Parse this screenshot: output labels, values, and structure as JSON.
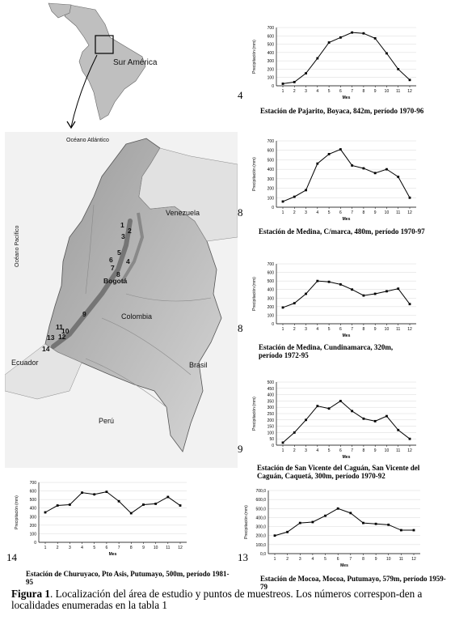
{
  "figure": {
    "caption_bold": "Figura 1",
    "caption_text": ". Localización del área de estudio y puntos de muestreos. Los números correspon-den a localidades enumeradas en la tabla 1"
  },
  "map": {
    "inset_label": "Sur América",
    "ocean_atlantic": "Océano Atlántico",
    "ocean_pacific": "Océano Pacífico",
    "countries": [
      "Venezuela",
      "Colombia",
      "Ecuador",
      "Brasil",
      "Perú"
    ],
    "city": "Bogotá",
    "points": [
      "1",
      "2",
      "3",
      "4",
      "5",
      "6",
      "7",
      "8",
      "9",
      "10",
      "11",
      "12",
      "13",
      "14"
    ]
  },
  "charts": [
    {
      "id": "pajarito",
      "ref": "4",
      "label": "Estación de Pajarito, Boyaca, 842m, período 1970-96",
      "xlabel": "Mes",
      "ylabel": "Precipitación (mm)",
      "ylim": [
        0,
        700
      ],
      "yticks": [
        "0",
        "100",
        "200",
        "300",
        "400",
        "500",
        "600",
        "700"
      ]
    },
    {
      "id": "medina1",
      "ref": "8",
      "label": "Estación de Medina, C/marca, 480m, período 1970-97",
      "xlabel": "Mes",
      "ylabel": "Precipitación (mm)",
      "ylim": [
        0,
        700
      ],
      "yticks": [
        "0",
        "100",
        "200",
        "300",
        "400",
        "500",
        "600",
        "700"
      ]
    },
    {
      "id": "medina2",
      "ref": "8",
      "label": "Estación de Medina, Cundinamarca, 320m, período 1972-95",
      "xlabel": "Mes",
      "ylabel": "Precipitación (mm)",
      "ylim": [
        0,
        700
      ],
      "yticks": [
        "0",
        "100",
        "200",
        "300",
        "400",
        "500",
        "600",
        "700"
      ]
    },
    {
      "id": "sanvicente",
      "ref": "9",
      "label": "Estación de San Vicente del Caguán, San Vicente del Caguán, Caquetá, 300m, período 1970-92",
      "xlabel": "Mes",
      "ylabel": "Precipitación (mm)",
      "ylim": [
        0,
        500
      ],
      "yticks": [
        "0",
        "50",
        "100",
        "150",
        "200",
        "250",
        "300",
        "350",
        "400",
        "450",
        "500"
      ]
    },
    {
      "id": "churuyaco",
      "ref": "14",
      "label": "Estación de Churuyaco, Pto Asis, Putumayo, 500m, período 1981-95",
      "xlabel": "Mes",
      "ylabel": "Precipitación (mm)",
      "ylim": [
        0,
        700
      ],
      "yticks": [
        "0",
        "100",
        "200",
        "300",
        "400",
        "500",
        "600",
        "700"
      ]
    },
    {
      "id": "mocoa",
      "ref": "13",
      "label": "Estación de Mocoa, Mocoa, Putumayo, 579m, período 1959-79",
      "xlabel": "Mes",
      "ylabel": "Precipitación (mm)",
      "ylim": [
        0,
        700
      ],
      "yticks": [
        "0,0",
        "100,0",
        "200,0",
        "300,0",
        "400,0",
        "500,0",
        "600,0",
        "700,0"
      ]
    }
  ],
  "chart_data": [
    {
      "type": "line",
      "title": "Estación de Pajarito, Boyaca, 842m, período 1970-96",
      "xlabel": "Mes",
      "ylabel": "Precipitación (mm)",
      "x": [
        1,
        2,
        3,
        4,
        5,
        6,
        7,
        8,
        9,
        10,
        11,
        12
      ],
      "y": [
        25,
        45,
        150,
        330,
        520,
        580,
        640,
        630,
        570,
        390,
        200,
        70
      ],
      "ylim": [
        0,
        700
      ]
    },
    {
      "type": "line",
      "title": "Estación de Medina, C/marca, 480m, período 1970-97",
      "xlabel": "Mes",
      "ylabel": "Precipitación (mm)",
      "x": [
        1,
        2,
        3,
        4,
        5,
        6,
        7,
        8,
        9,
        10,
        11,
        12
      ],
      "y": [
        60,
        110,
        180,
        460,
        560,
        610,
        440,
        410,
        360,
        400,
        320,
        100
      ],
      "ylim": [
        0,
        700
      ]
    },
    {
      "type": "line",
      "title": "Estación de Medina, Cundinamarca, 320m, período 1972-95",
      "xlabel": "Mes",
      "ylabel": "Precipitación (mm)",
      "x": [
        1,
        2,
        3,
        4,
        5,
        6,
        7,
        8,
        9,
        10,
        11,
        12
      ],
      "y": [
        190,
        240,
        350,
        500,
        490,
        460,
        400,
        330,
        350,
        380,
        410,
        230
      ],
      "ylim": [
        0,
        700
      ]
    },
    {
      "type": "line",
      "title": "Estación de San Vicente del Caguán, San Vicente del Caguán, Caquetá, 300m, período 1970-92",
      "xlabel": "Mes",
      "ylabel": "Precipitación (mm)",
      "x": [
        1,
        2,
        3,
        4,
        5,
        6,
        7,
        8,
        9,
        10,
        11,
        12
      ],
      "y": [
        20,
        100,
        200,
        310,
        290,
        350,
        270,
        210,
        190,
        230,
        120,
        50
      ],
      "ylim": [
        0,
        500
      ]
    },
    {
      "type": "line",
      "title": "Estación de Churuyaco, Pto Asis, Putumayo, 500m, período 1981-95",
      "xlabel": "Mes",
      "ylabel": "Precipitación (mm)",
      "x": [
        1,
        2,
        3,
        4,
        5,
        6,
        7,
        8,
        9,
        10,
        11,
        12
      ],
      "y": [
        350,
        430,
        440,
        580,
        560,
        590,
        480,
        340,
        440,
        450,
        530,
        430
      ],
      "ylim": [
        0,
        700
      ]
    },
    {
      "type": "line",
      "title": "Estación de Mocoa, Mocoa, Putumayo, 579m, período 1959-79",
      "xlabel": "Mes",
      "ylabel": "Precipitación (mm)",
      "x": [
        1,
        2,
        3,
        4,
        5,
        6,
        7,
        8,
        9,
        10,
        11,
        12
      ],
      "y": [
        200,
        240,
        340,
        350,
        420,
        500,
        450,
        340,
        330,
        320,
        260,
        260
      ],
      "ylim": [
        0,
        700
      ]
    }
  ]
}
